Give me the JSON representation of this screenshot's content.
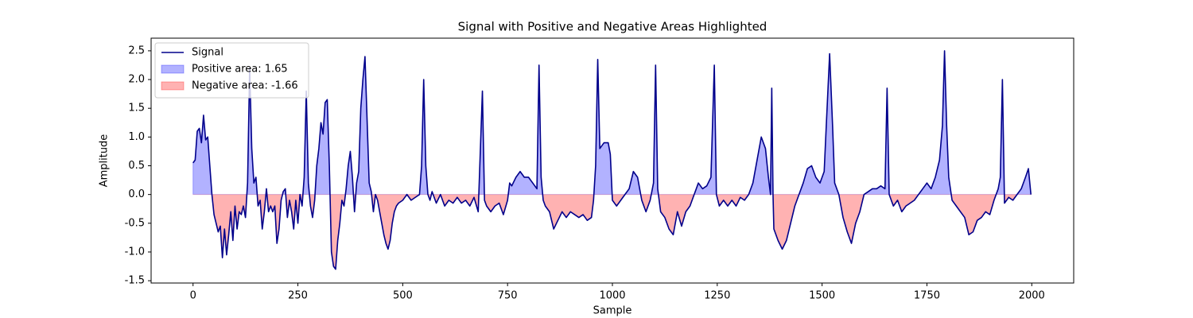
{
  "chart_data": {
    "type": "line",
    "title": "Signal with Positive and Negative Areas Highlighted",
    "xlabel": "Sample",
    "ylabel": "Amplitude",
    "x": [
      0,
      5,
      10,
      15,
      20,
      25,
      30,
      35,
      40,
      45,
      50,
      55,
      60,
      65,
      70,
      75,
      80,
      85,
      90,
      95,
      100,
      105,
      110,
      115,
      120,
      125,
      130,
      135,
      140,
      145,
      150,
      155,
      160,
      165,
      170,
      175,
      180,
      185,
      190,
      195,
      200,
      205,
      210,
      215,
      220,
      225,
      230,
      235,
      240,
      245,
      250,
      255,
      260,
      265,
      270,
      275,
      280,
      285,
      290,
      295,
      300,
      305,
      310,
      315,
      320,
      325,
      330,
      335,
      340,
      345,
      350,
      355,
      360,
      365,
      370,
      375,
      380,
      385,
      390,
      395,
      400,
      405,
      410,
      415,
      420,
      425,
      430,
      435,
      440,
      445,
      450,
      455,
      460,
      465,
      470,
      475,
      480,
      485,
      490,
      500,
      510,
      520,
      530,
      540,
      545,
      550,
      555,
      560,
      565,
      570,
      580,
      590,
      600,
      610,
      620,
      630,
      640,
      650,
      660,
      670,
      680,
      690,
      695,
      700,
      710,
      720,
      730,
      740,
      750,
      755,
      760,
      770,
      780,
      790,
      800,
      810,
      820,
      825,
      830,
      835,
      840,
      850,
      860,
      870,
      880,
      890,
      900,
      910,
      920,
      930,
      940,
      950,
      955,
      960,
      965,
      970,
      980,
      990,
      995,
      1000,
      1010,
      1020,
      1030,
      1040,
      1050,
      1060,
      1070,
      1080,
      1090,
      1098,
      1103,
      1108,
      1115,
      1125,
      1135,
      1145,
      1155,
      1165,
      1175,
      1185,
      1195,
      1205,
      1215,
      1225,
      1235,
      1243,
      1248,
      1255,
      1265,
      1275,
      1285,
      1295,
      1305,
      1315,
      1325,
      1335,
      1345,
      1355,
      1365,
      1372,
      1377,
      1380,
      1383,
      1385,
      1395,
      1405,
      1415,
      1425,
      1435,
      1445,
      1455,
      1465,
      1475,
      1485,
      1495,
      1505,
      1510,
      1518,
      1525,
      1530,
      1540,
      1550,
      1560,
      1570,
      1580,
      1590,
      1600,
      1610,
      1620,
      1630,
      1640,
      1650,
      1655,
      1660,
      1670,
      1680,
      1690,
      1700,
      1710,
      1720,
      1730,
      1740,
      1750,
      1760,
      1770,
      1780,
      1787,
      1792,
      1797,
      1802,
      1810,
      1820,
      1830,
      1840,
      1850,
      1860,
      1870,
      1880,
      1890,
      1900,
      1910,
      1920,
      1925,
      1930,
      1935,
      1945,
      1955,
      1965,
      1975,
      1985,
      1992,
      1998
    ],
    "series": [
      {
        "name": "Signal",
        "color": "#00008b",
        "values": [
          0.55,
          0.6,
          1.1,
          1.15,
          0.9,
          1.38,
          0.95,
          1.0,
          0.5,
          0.0,
          -0.35,
          -0.5,
          -0.65,
          -0.55,
          -1.1,
          -0.6,
          -1.05,
          -0.7,
          -0.3,
          -0.8,
          -0.2,
          -0.6,
          -0.3,
          -0.35,
          -0.2,
          -0.4,
          0.2,
          2.2,
          0.8,
          0.2,
          0.3,
          -0.2,
          -0.1,
          -0.6,
          -0.3,
          0.1,
          -0.3,
          -0.2,
          -0.3,
          -0.2,
          -0.85,
          -0.6,
          -0.1,
          0.05,
          0.1,
          -0.4,
          -0.1,
          -0.3,
          -0.6,
          -0.1,
          -0.5,
          0.0,
          -0.2,
          0.3,
          1.8,
          0.2,
          -0.2,
          -0.4,
          -0.1,
          0.5,
          0.8,
          1.25,
          1.05,
          1.6,
          1.65,
          0.5,
          -1.0,
          -1.25,
          -1.3,
          -0.8,
          -0.5,
          -0.1,
          -0.2,
          0.1,
          0.5,
          0.75,
          0.3,
          -0.3,
          0.2,
          0.4,
          1.5,
          2.0,
          2.4,
          1.3,
          0.2,
          0.05,
          -0.3,
          0.0,
          -0.1,
          -0.3,
          -0.5,
          -0.7,
          -0.85,
          -0.95,
          -0.8,
          -0.5,
          -0.3,
          -0.2,
          -0.15,
          -0.1,
          0.0,
          -0.1,
          -0.05,
          0.0,
          0.5,
          2.0,
          0.5,
          0.0,
          -0.1,
          0.05,
          -0.15,
          0.0,
          -0.2,
          -0.1,
          -0.15,
          -0.05,
          -0.15,
          -0.1,
          -0.2,
          -0.05,
          -0.3,
          1.8,
          -0.1,
          -0.2,
          -0.3,
          -0.2,
          -0.15,
          -0.35,
          -0.1,
          0.2,
          0.15,
          0.3,
          0.4,
          0.3,
          0.3,
          0.2,
          0.1,
          2.25,
          0.3,
          -0.1,
          -0.2,
          -0.3,
          -0.6,
          -0.45,
          -0.3,
          -0.4,
          -0.3,
          -0.35,
          -0.4,
          -0.35,
          -0.45,
          -0.4,
          -0.1,
          0.5,
          2.35,
          0.8,
          0.9,
          0.9,
          0.7,
          -0.1,
          -0.2,
          -0.1,
          0.0,
          0.1,
          0.4,
          0.3,
          -0.1,
          -0.3,
          -0.1,
          0.2,
          2.25,
          0.1,
          -0.3,
          -0.4,
          -0.6,
          -0.7,
          -0.3,
          -0.55,
          -0.3,
          -0.2,
          0.0,
          0.2,
          0.1,
          0.15,
          0.3,
          2.25,
          0.0,
          -0.2,
          -0.1,
          -0.2,
          -0.1,
          -0.2,
          -0.05,
          -0.1,
          0.0,
          0.2,
          0.6,
          1.0,
          0.8,
          0.3,
          0.0,
          1.85,
          0.0,
          -0.6,
          -0.8,
          -0.95,
          -0.8,
          -0.5,
          -0.2,
          0.0,
          0.2,
          0.45,
          0.5,
          0.3,
          0.2,
          0.4,
          1.2,
          2.45,
          1.2,
          0.2,
          0.0,
          -0.4,
          -0.65,
          -0.85,
          -0.5,
          -0.3,
          0.0,
          0.05,
          0.1,
          0.1,
          0.15,
          0.1,
          1.85,
          0.0,
          -0.2,
          -0.1,
          -0.3,
          -0.2,
          -0.15,
          -0.1,
          0.0,
          0.1,
          0.2,
          0.1,
          0.3,
          0.6,
          1.2,
          2.5,
          1.2,
          0.3,
          -0.1,
          -0.2,
          -0.3,
          -0.4,
          -0.7,
          -0.65,
          -0.45,
          -0.4,
          -0.3,
          -0.35,
          -0.1,
          0.1,
          0.3,
          2.0,
          -0.15,
          -0.05,
          -0.1,
          0.0,
          0.1,
          0.3,
          0.45,
          0.0
        ]
      }
    ],
    "fills": [
      {
        "name": "Positive area: 1.65",
        "color": "#0000ff",
        "where": "above"
      },
      {
        "name": "Negative area: -1.66",
        "color": "#ff0000",
        "where": "below"
      }
    ],
    "fill_alpha": 0.3,
    "xlim": [
      -100,
      2100
    ],
    "xticks": [
      0,
      250,
      500,
      750,
      1000,
      1250,
      1500,
      1750,
      2000
    ],
    "ylim": [
      -1.54,
      2.72
    ],
    "yticks": [
      -1.5,
      -1.0,
      -0.5,
      0.0,
      0.5,
      1.0,
      1.5,
      2.0,
      2.5
    ],
    "ytick_decimals": 1,
    "legend": "upper left"
  }
}
